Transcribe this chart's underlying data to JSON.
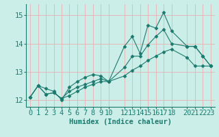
{
  "xlabel": "Humidex (Indice chaleur)",
  "bg_color": "#cceee8",
  "line_color": "#1a7a6e",
  "xlim": [
    -0.5,
    23.5
  ],
  "ylim": [
    11.75,
    15.4
  ],
  "yticks": [
    12,
    13,
    14,
    15
  ],
  "xticks": [
    0,
    1,
    2,
    3,
    4,
    5,
    6,
    7,
    8,
    9,
    10,
    12,
    13,
    14,
    15,
    16,
    17,
    18,
    20,
    21,
    22,
    23
  ],
  "series": [
    {
      "x": [
        0,
        1,
        2,
        3,
        4,
        5,
        6,
        7,
        8,
        9,
        10,
        12,
        13,
        14,
        15,
        16,
        17,
        18,
        20,
        21,
        22,
        23
      ],
      "y": [
        12.1,
        12.5,
        12.4,
        12.3,
        12.0,
        12.45,
        12.65,
        12.8,
        12.9,
        12.85,
        12.65,
        13.9,
        14.25,
        13.65,
        14.65,
        14.55,
        15.1,
        14.45,
        13.9,
        13.9,
        13.55,
        13.2
      ]
    },
    {
      "x": [
        0,
        1,
        2,
        3,
        4,
        5,
        6,
        7,
        8,
        9,
        10,
        12,
        13,
        14,
        15,
        16,
        17,
        18,
        20,
        21,
        22,
        23
      ],
      "y": [
        12.1,
        12.5,
        12.2,
        12.25,
        12.05,
        12.3,
        12.45,
        12.55,
        12.65,
        12.75,
        12.65,
        13.15,
        13.55,
        13.55,
        13.95,
        14.25,
        14.5,
        14.0,
        13.9,
        13.9,
        13.55,
        13.2
      ]
    },
    {
      "x": [
        0,
        1,
        2,
        3,
        4,
        5,
        6,
        7,
        8,
        9,
        10,
        12,
        13,
        14,
        15,
        16,
        17,
        18,
        20,
        21,
        22,
        23
      ],
      "y": [
        12.1,
        12.5,
        12.2,
        12.25,
        12.05,
        12.15,
        12.3,
        12.45,
        12.55,
        12.65,
        12.65,
        12.85,
        13.05,
        13.2,
        13.4,
        13.55,
        13.7,
        13.8,
        13.5,
        13.2,
        13.2,
        13.2
      ]
    }
  ],
  "grid_color": "#e8b0b0",
  "font_color": "#1a7a6e",
  "fontsize": 7.5
}
